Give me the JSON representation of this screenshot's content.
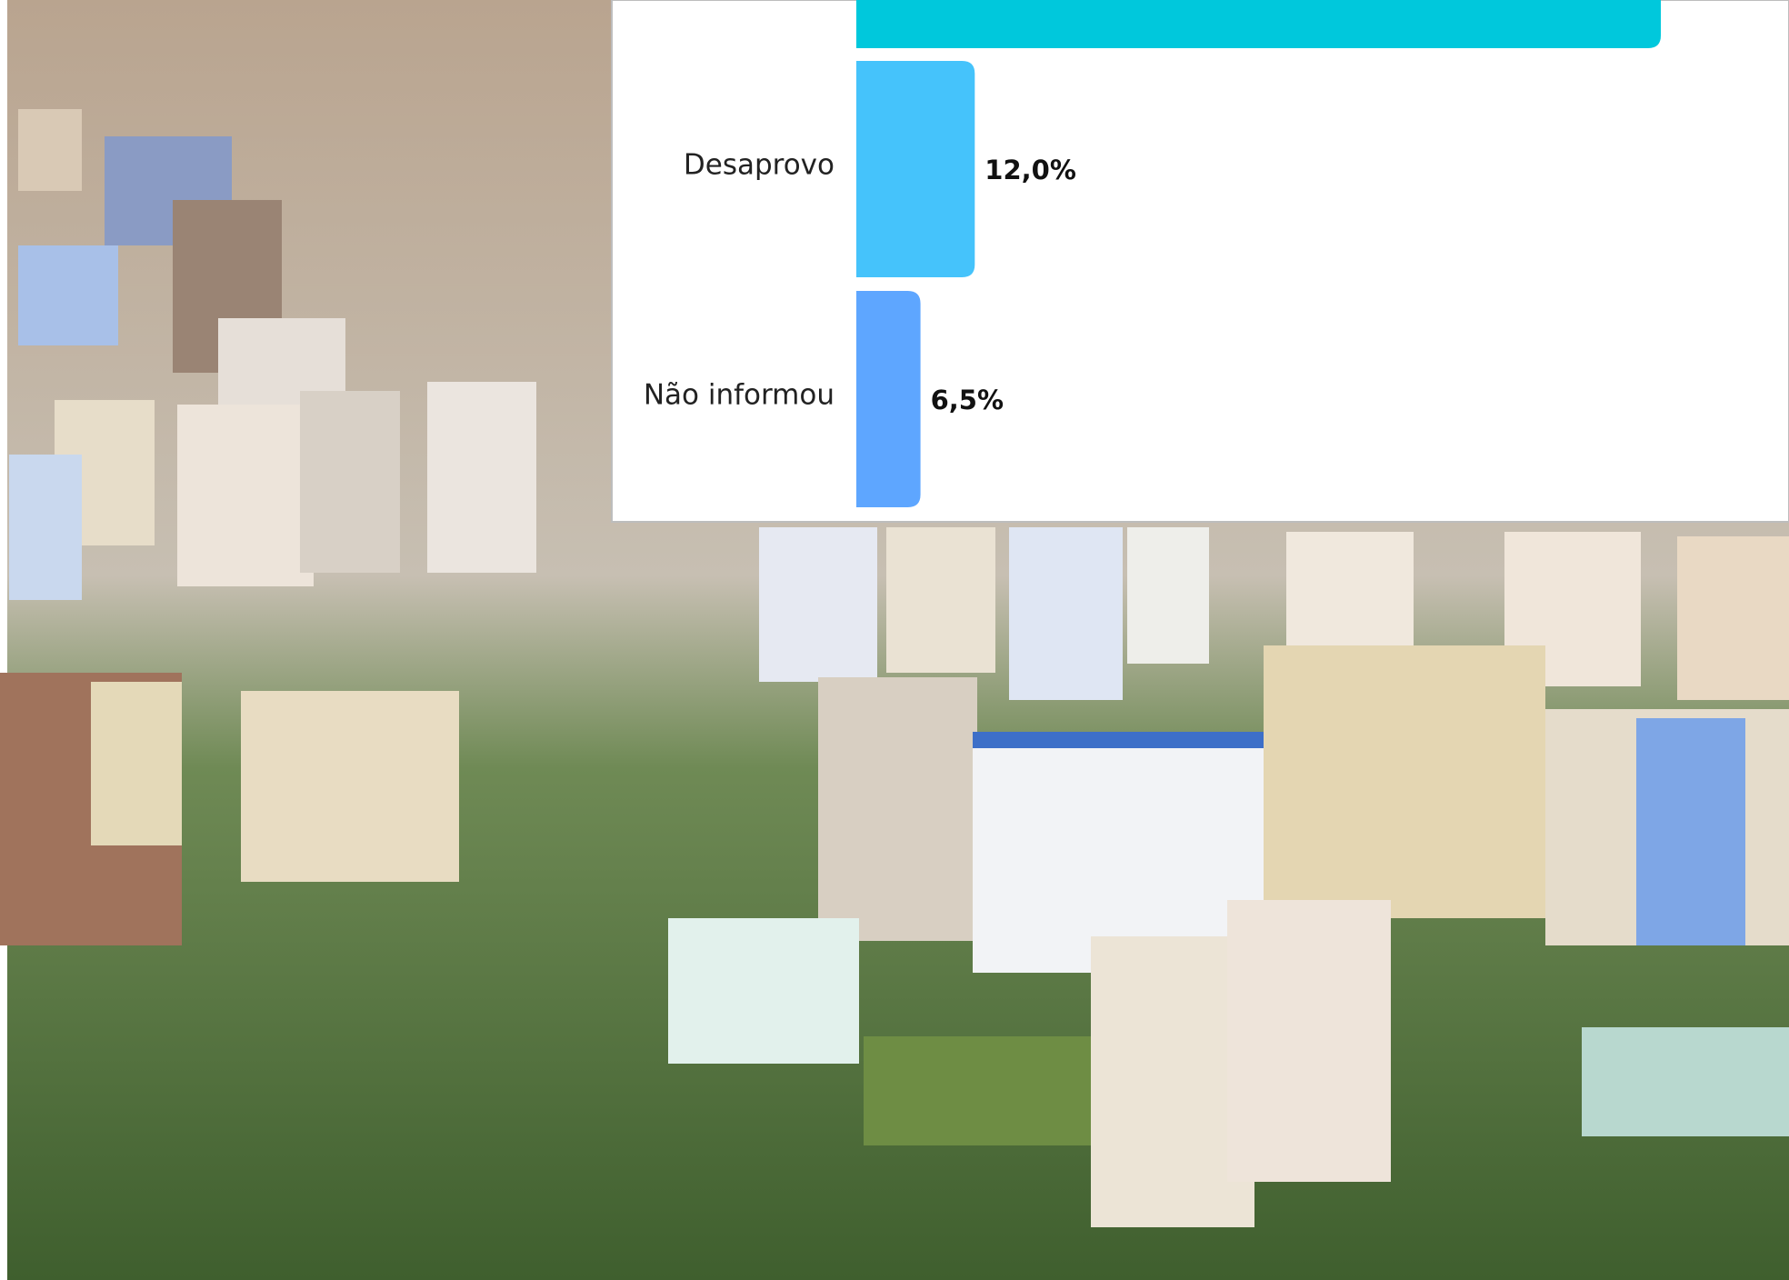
{
  "chart_data": {
    "type": "bar",
    "orientation": "horizontal",
    "categories": [
      null,
      "Desaprovo",
      "Não informou"
    ],
    "values": [
      81.5,
      12.0,
      6.5
    ],
    "value_labels": [
      null,
      "12,0%",
      "6,5%"
    ],
    "colors": [
      "#00c8dc",
      "#45c3fb",
      "#5ea6ff"
    ]
  }
}
